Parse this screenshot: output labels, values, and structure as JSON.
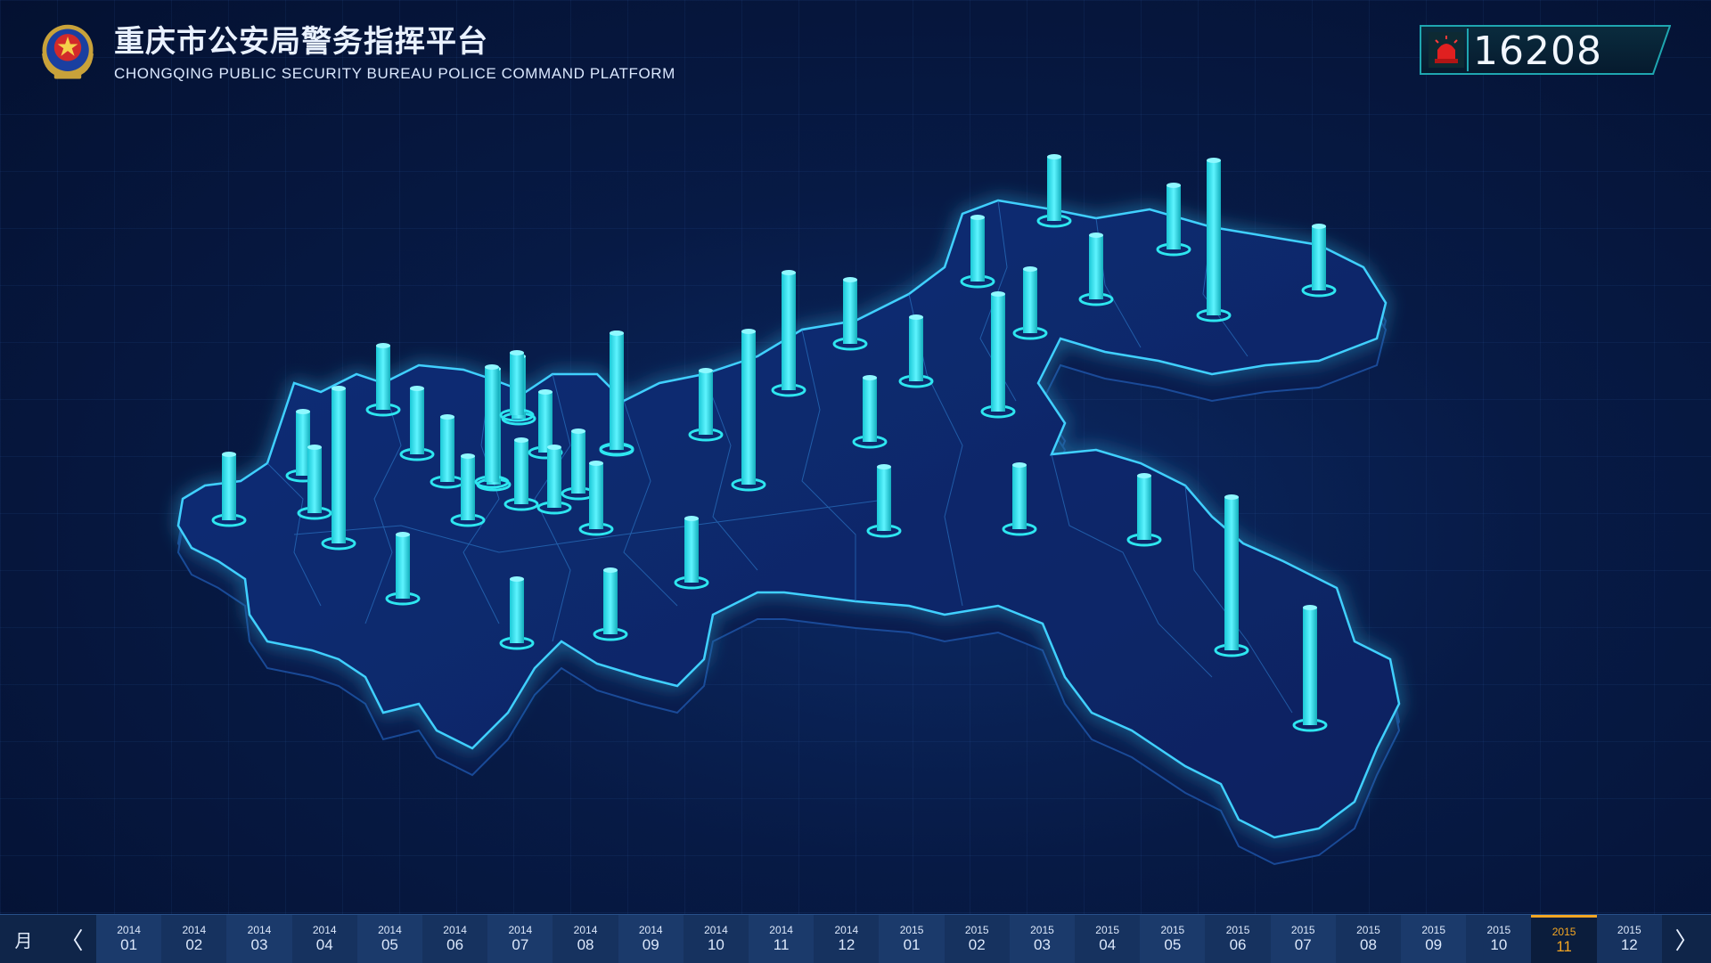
{
  "header": {
    "title_cn": "重庆市公安局警务指挥平台",
    "title_en": "CHONGQING PUBLIC SECURITY BUREAU POLICE COMMAND PLATFORM"
  },
  "counter": {
    "value": "16208",
    "icon": "alarm-light-icon"
  },
  "colors": {
    "accent": "#2ee6f0",
    "active_month": "#f3a623",
    "background": "#061639"
  },
  "timeline": {
    "unit_label": "月",
    "prev": "〈",
    "next": "〉",
    "active_index": 22,
    "items": [
      {
        "year": "2014",
        "month": "01"
      },
      {
        "year": "2014",
        "month": "02"
      },
      {
        "year": "2014",
        "month": "03"
      },
      {
        "year": "2014",
        "month": "04"
      },
      {
        "year": "2014",
        "month": "05"
      },
      {
        "year": "2014",
        "month": "06"
      },
      {
        "year": "2014",
        "month": "07"
      },
      {
        "year": "2014",
        "month": "08"
      },
      {
        "year": "2014",
        "month": "09"
      },
      {
        "year": "2014",
        "month": "10"
      },
      {
        "year": "2014",
        "month": "11"
      },
      {
        "year": "2014",
        "month": "12"
      },
      {
        "year": "2015",
        "month": "01"
      },
      {
        "year": "2015",
        "month": "02"
      },
      {
        "year": "2015",
        "month": "03"
      },
      {
        "year": "2015",
        "month": "04"
      },
      {
        "year": "2015",
        "month": "05"
      },
      {
        "year": "2015",
        "month": "06"
      },
      {
        "year": "2015",
        "month": "07"
      },
      {
        "year": "2015",
        "month": "08"
      },
      {
        "year": "2015",
        "month": "09"
      },
      {
        "year": "2015",
        "month": "10"
      },
      {
        "year": "2015",
        "month": "11"
      },
      {
        "year": "2015",
        "month": "12"
      }
    ]
  }
}
